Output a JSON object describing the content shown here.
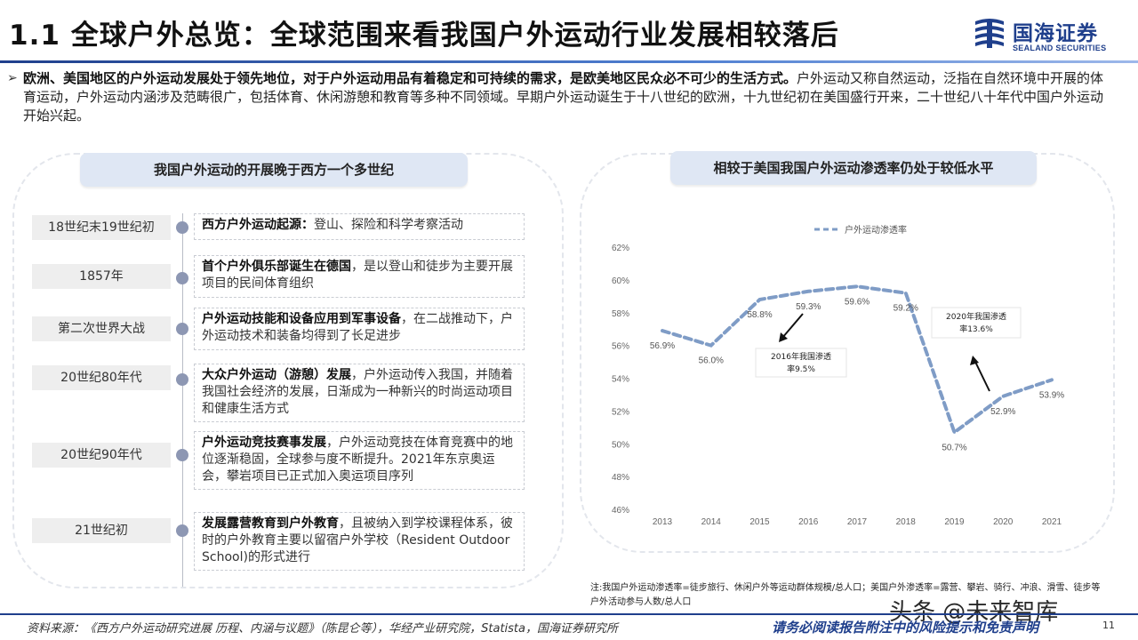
{
  "header": {
    "title": "1.1 全球户外总览：全球范围来看我国户外运动行业发展相较落后",
    "logo_cn": "国海证券",
    "logo_en": "SEALAND SECURITIES"
  },
  "intro": {
    "bullet": "➢",
    "bold": "欧洲、美国地区的户外运动发展处于领先地位，对于户外运动用品有着稳定和可持续的需求，是欧美地区民众必不可少的生活方式。",
    "text": "户外运动又称自然运动，泛指在自然环境中开展的体育运动，户外运动内涵涉及范畴很广，包括体育、休闲游憩和教育等多种不同领域。早期户外运动诞生于十八世纪的欧洲，十九世纪初在美国盛行开来，二十世纪八十年代中国户外运动开始兴起。"
  },
  "left_panel": {
    "heading": "我国户外运动的开展晚于西方一个多世纪",
    "timeline": [
      {
        "era": "18世纪末19世纪初",
        "bold": "西方户外运动起源：",
        "text": "登山、探险和科学考察活动"
      },
      {
        "era": "1857年",
        "bold": "首个户外俱乐部诞生在德国",
        "text": "，是以登山和徒步为主要开展项目的民间体育组织"
      },
      {
        "era": "第二次世界大战",
        "bold": "户外运动技能和设备应用到军事设备",
        "text": "，在二战推动下，户外运动技术和装备均得到了长足进步"
      },
      {
        "era": "20世纪80年代",
        "bold": "大众户外运动（游憩）发展",
        "text": "，户外运动传入我国，并随着我国社会经济的发展，日渐成为一种新兴的时尚运动项目和健康生活方式"
      },
      {
        "era": "20世纪90年代",
        "bold": "户外运动竞技赛事发展",
        "text": "，户外运动竞技在体育竞赛中的地位逐渐稳固，全球参与度不断提升。2021年东京奥运会，攀岩项目已正式加入奥运项目序列"
      },
      {
        "era": "21世纪初",
        "bold": "发展露营教育到户外教育",
        "text": "，且被纳入到学校课程体系，彼时的户外教育主要以留宿户外学校（Resident Outdoor School)的形式进行"
      }
    ]
  },
  "right_panel": {
    "heading": "相较于美国我国户外运动渗透率仍处于较低水平",
    "note": "注:我国户外运动渗透率=徒步旅行、休闲户外等运动群体规模/总人口；美国户外渗透率=露营、攀岩、骑行、冲浪、滑雪、徒步等户外活动参与人数/总人口"
  },
  "chart_data": {
    "type": "line",
    "title": "",
    "xlabel": "",
    "ylabel": "",
    "x": [
      "2013",
      "2014",
      "2015",
      "2016",
      "2017",
      "2018",
      "2019",
      "2020",
      "2021"
    ],
    "series": [
      {
        "name": "户外运动渗透率",
        "values": [
          56.9,
          56.0,
          58.8,
          59.3,
          59.6,
          59.2,
          50.7,
          52.9,
          53.9
        ],
        "labels": [
          "56.9%",
          "56.0%",
          "58.8%",
          "59.3%",
          "59.6%",
          "59.2%",
          "50.7%",
          "52.9%",
          "53.9%"
        ]
      }
    ],
    "ylim": [
      46,
      62
    ],
    "yticks": [
      "46%",
      "48%",
      "50%",
      "52%",
      "54%",
      "56%",
      "58%",
      "60%",
      "62%"
    ],
    "grid": false,
    "legend": "top",
    "line_color": "#7f9cc6",
    "annotations": [
      {
        "text_line1": "2016年我国渗透",
        "text_line2": "率9.5%"
      },
      {
        "text_line1": "2020年我国渗透",
        "text_line2": "率13.6%"
      }
    ]
  },
  "footer": {
    "source": "资料来源：《西方户外运动研究进展 历程、内涵与议题》（陈昆仑等），华经产业研究院，Statista，国海证券研究所",
    "disclaimer": "请务必阅读报告附注中的风险提示和免责声明",
    "page": "11",
    "watermark": "头条 @未来智库"
  },
  "colors": {
    "brand": "#1f3f8c",
    "pill_bg": "#dfe7f4",
    "dot": "#8d97b3"
  }
}
